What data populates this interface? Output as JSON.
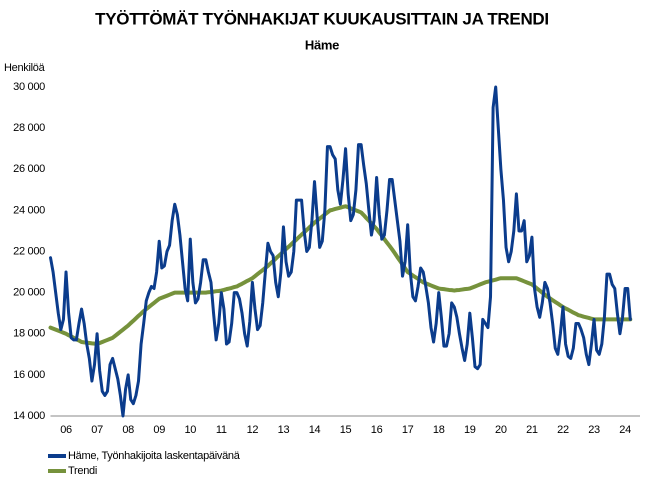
{
  "chart_data": {
    "type": "line",
    "title": "TYÖTTÖMÄT TYÖNHAKIJAT KUUKAUSITTAIN JA TRENDI",
    "subtitle": "Häme",
    "y_label": "Henkilöä",
    "categories": [
      null,
      null,
      null,
      null,
      null,
      null,
      "06",
      null,
      null,
      null,
      null,
      null,
      null,
      null,
      null,
      null,
      null,
      null,
      "07",
      null,
      null,
      null,
      null,
      null,
      null,
      null,
      null,
      null,
      null,
      null,
      "08",
      null,
      null,
      null,
      null,
      null,
      null,
      null,
      null,
      null,
      null,
      null,
      "09",
      null,
      null,
      null,
      null,
      null,
      null,
      null,
      null,
      null,
      null,
      null,
      "10",
      null,
      null,
      null,
      null,
      null,
      null,
      null,
      null,
      null,
      null,
      null,
      "11",
      null,
      null,
      null,
      null,
      null,
      null,
      null,
      null,
      null,
      null,
      null,
      "12",
      null,
      null,
      null,
      null,
      null,
      null,
      null,
      null,
      null,
      null,
      null,
      "13",
      null,
      null,
      null,
      null,
      null,
      null,
      null,
      null,
      null,
      null,
      null,
      "14",
      null,
      null,
      null,
      null,
      null,
      null,
      null,
      null,
      null,
      null,
      null,
      "15",
      null,
      null,
      null,
      null,
      null,
      null,
      null,
      null,
      null,
      null,
      null,
      "16",
      null,
      null,
      null,
      null,
      null,
      null,
      null,
      null,
      null,
      null,
      null,
      "17",
      null,
      null,
      null,
      null,
      null,
      null,
      null,
      null,
      null,
      null,
      null,
      "18",
      null,
      null,
      null,
      null,
      null,
      null,
      null,
      null,
      null,
      null,
      null,
      "19",
      null,
      null,
      null,
      null,
      null,
      null,
      null,
      null,
      null,
      null,
      null,
      "20",
      null,
      null,
      null,
      null,
      null,
      null,
      null,
      null,
      null,
      null,
      null,
      "21",
      null,
      null,
      null,
      null,
      null,
      null,
      null,
      null,
      null,
      null,
      null,
      "22",
      null,
      null,
      null,
      null,
      null,
      null,
      null,
      null,
      null,
      null,
      null,
      "23",
      null,
      null,
      null,
      null,
      null,
      null,
      null,
      null,
      null,
      null,
      null,
      "24",
      null,
      null
    ],
    "series": [
      {
        "name": "Häme, Työnhakijoita laskentapäivänä",
        "color": "#0b3c8c",
        "values": [
          21700,
          21000,
          20000,
          19000,
          18200,
          18700,
          21000,
          19000,
          17800,
          17700,
          17700,
          18500,
          19200,
          18500,
          17500,
          16800,
          15700,
          16500,
          18000,
          16200,
          15200,
          15000,
          15200,
          16500,
          16800,
          16300,
          15800,
          15000,
          14000,
          15300,
          16000,
          14800,
          14600,
          15000,
          15700,
          17500,
          18500,
          19600,
          20000,
          20300,
          20200,
          21000,
          22500,
          21200,
          21300,
          22000,
          22300,
          23500,
          24300,
          23800,
          22800,
          21500,
          20200,
          19600,
          22600,
          20500,
          19500,
          19700,
          20500,
          21600,
          21600,
          21000,
          20500,
          19000,
          17700,
          18500,
          20000,
          19200,
          17500,
          17600,
          18500,
          20000,
          20000,
          19700,
          19000,
          18000,
          17400,
          18600,
          20500,
          19200,
          18200,
          18400,
          19500,
          21000,
          22400,
          22000,
          21800,
          20500,
          19800,
          21000,
          23200,
          21500,
          20800,
          21000,
          22000,
          24500,
          24500,
          24500,
          23000,
          22000,
          22200,
          23500,
          25400,
          23700,
          22200,
          22500,
          24000,
          27100,
          27100,
          26700,
          26500,
          25000,
          24300,
          25500,
          27000,
          24800,
          23500,
          23800,
          25000,
          27200,
          27200,
          26200,
          25300,
          24000,
          22800,
          23500,
          25600,
          23800,
          22600,
          22800,
          24000,
          25500,
          25500,
          24500,
          23500,
          22500,
          20800,
          21500,
          23300,
          21000,
          19800,
          19600,
          20300,
          21200,
          21000,
          20300,
          19500,
          18300,
          17600,
          18500,
          20000,
          18800,
          17400,
          17400,
          18000,
          19500,
          19300,
          18800,
          18000,
          17300,
          16700,
          17500,
          19000,
          17800,
          16400,
          16300,
          16500,
          18700,
          18500,
          18300,
          19800,
          29000,
          30000,
          28000,
          26000,
          24500,
          22200,
          21500,
          22000,
          23000,
          24800,
          23000,
          23000,
          23500,
          21500,
          21800,
          22700,
          20200,
          19300,
          18800,
          19500,
          20500,
          20200,
          19500,
          18500,
          17300,
          17000,
          18000,
          19300,
          17500,
          16900,
          16800,
          17300,
          18500,
          18500,
          18200,
          17800,
          17000,
          16500,
          17500,
          18700,
          17200,
          17000,
          17500,
          18800,
          20900,
          20900,
          20400,
          20200,
          19000,
          18000,
          18800,
          20200,
          20200,
          18700
        ]
      },
      {
        "name": "Trendi",
        "color": "#76923c",
        "values": [
          18300,
          18250,
          18200,
          18150,
          18100,
          18050,
          18000,
          17930,
          17870,
          17800,
          17730,
          17670,
          17600,
          17580,
          17570,
          17550,
          17530,
          17520,
          17500,
          17550,
          17600,
          17650,
          17700,
          17750,
          17800,
          17900,
          18000,
          18100,
          18200,
          18300,
          18400,
          18520,
          18630,
          18750,
          18870,
          18980,
          19100,
          19200,
          19300,
          19400,
          19500,
          19600,
          19700,
          19750,
          19800,
          19850,
          19900,
          19950,
          20000,
          20000,
          20000,
          20000,
          20000,
          20000,
          20000,
          20000,
          20000,
          20000,
          20000,
          20000,
          20000,
          20020,
          20030,
          20050,
          20070,
          20080,
          20100,
          20130,
          20170,
          20200,
          20230,
          20270,
          20300,
          20370,
          20430,
          20500,
          20570,
          20630,
          20700,
          20800,
          20900,
          21000,
          21100,
          21200,
          21300,
          21420,
          21530,
          21650,
          21770,
          21880,
          22000,
          22120,
          22230,
          22350,
          22470,
          22580,
          22700,
          22820,
          22930,
          23050,
          23170,
          23280,
          23400,
          23500,
          23600,
          23700,
          23800,
          23900,
          24000,
          24030,
          24070,
          24100,
          24130,
          24170,
          24200,
          24150,
          24100,
          24050,
          24000,
          23950,
          23900,
          23770,
          23630,
          23500,
          23370,
          23230,
          23100,
          22930,
          22770,
          22600,
          22430,
          22270,
          22100,
          21920,
          21730,
          21550,
          21370,
          21180,
          21000,
          20920,
          20830,
          20750,
          20670,
          20580,
          20500,
          20450,
          20400,
          20350,
          20300,
          20250,
          20200,
          20180,
          20170,
          20150,
          20130,
          20120,
          20100,
          20120,
          20130,
          20150,
          20170,
          20180,
          20200,
          20250,
          20300,
          20350,
          20400,
          20450,
          20500,
          20530,
          20570,
          20600,
          20630,
          20670,
          20700,
          20700,
          20700,
          20700,
          20700,
          20700,
          20700,
          20650,
          20600,
          20550,
          20500,
          20450,
          20400,
          20300,
          20200,
          20100,
          20000,
          19900,
          19800,
          19720,
          19630,
          19550,
          19470,
          19380,
          19300,
          19230,
          19170,
          19100,
          19030,
          18970,
          18900,
          18870,
          18830,
          18800,
          18770,
          18730,
          18700,
          18700,
          18700,
          18700,
          18700,
          18700,
          18700,
          18700,
          18700,
          18700,
          18700,
          18700,
          18700,
          18700,
          18700
        ]
      }
    ],
    "ylim": [
      14000,
      30000
    ],
    "yticks": [
      {
        "value": 14000,
        "label": "14 000"
      },
      {
        "value": 16000,
        "label": "16 000"
      },
      {
        "value": 18000,
        "label": "18 000"
      },
      {
        "value": 20000,
        "label": "20 000"
      },
      {
        "value": 22000,
        "label": "22 000"
      },
      {
        "value": 24000,
        "label": "24 000"
      },
      {
        "value": 26000,
        "label": "26 000"
      },
      {
        "value": 28000,
        "label": "28 000"
      },
      {
        "value": 30000,
        "label": "30 000"
      }
    ],
    "grid": false,
    "legend": "bottom-left"
  }
}
